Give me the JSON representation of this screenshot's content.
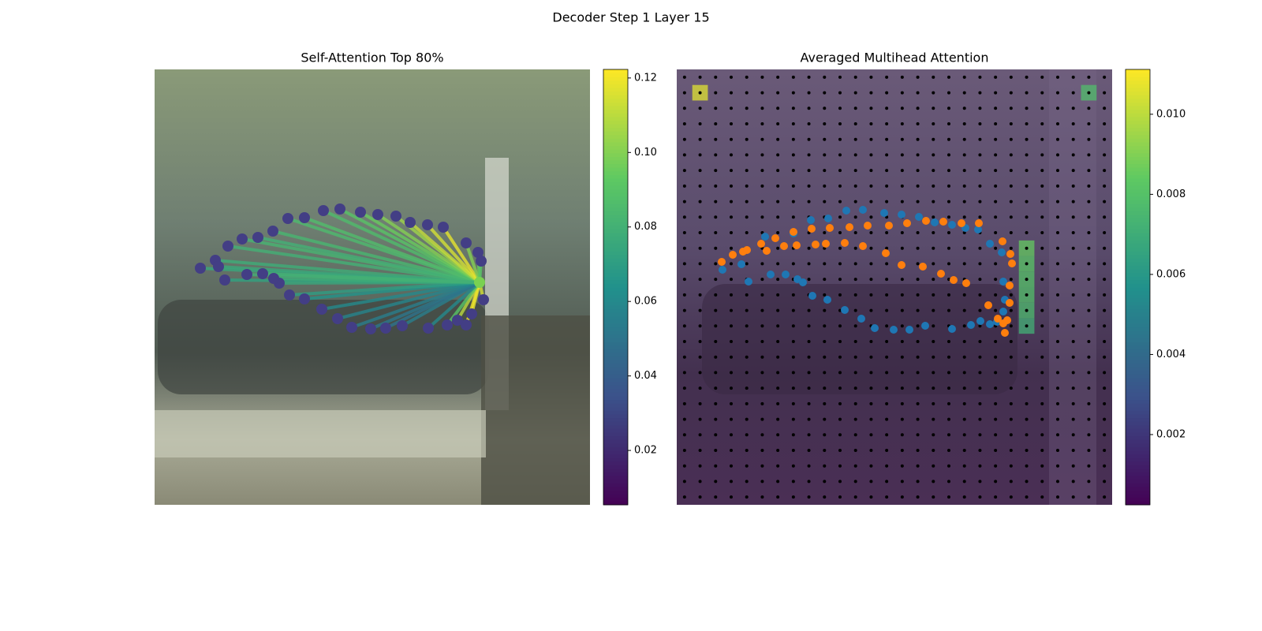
{
  "title": "Decoder Step 1 Layer 15",
  "chart_data": [
    {
      "type": "attention-lines",
      "title": "Self-Attention Top 80%",
      "xlim": [
        0,
        552
      ],
      "ylim": [
        552,
        0
      ],
      "query_point": {
        "x": 412,
        "y": 270,
        "color": "#7ad151"
      },
      "marker_color": "#433e85",
      "x": [
        58,
        77,
        81,
        89,
        93,
        111,
        131,
        150,
        169,
        190,
        214,
        235,
        261,
        283,
        306,
        324,
        346,
        366,
        395,
        410,
        414,
        417,
        402,
        395,
        384,
        371,
        347,
        314,
        293,
        274,
        250,
        232,
        212,
        190,
        171,
        158,
        151,
        137,
        117
      ],
      "y": [
        252,
        242,
        250,
        267,
        224,
        215,
        213,
        205,
        189,
        188,
        179,
        177,
        181,
        184,
        186,
        194,
        197,
        200,
        220,
        232,
        243,
        292,
        310,
        324,
        318,
        324,
        328,
        325,
        328,
        329,
        327,
        316,
        304,
        291,
        286,
        271,
        265,
        259,
        260
      ],
      "values": [
        0.075,
        0.078,
        0.076,
        0.072,
        0.08,
        0.082,
        0.08,
        0.083,
        0.085,
        0.087,
        0.086,
        0.09,
        0.095,
        0.1,
        0.105,
        0.112,
        0.115,
        0.118,
        0.1,
        0.095,
        0.09,
        0.115,
        0.118,
        0.12,
        0.11,
        0.09,
        0.06,
        0.055,
        0.05,
        0.052,
        0.055,
        0.058,
        0.06,
        0.065,
        0.07,
        0.075,
        0.078,
        0.08,
        0.08
      ],
      "clim": [
        0.0054,
        0.1223
      ],
      "cticks": [
        0.02,
        0.04,
        0.06,
        0.08,
        {
          "value": 0.1,
          "label": "0.10"
        },
        0.12
      ]
    },
    {
      "type": "heatmap-points",
      "title": "Averaged Multihead Attention",
      "xlim": [
        0,
        552
      ],
      "ylim": [
        552,
        0
      ],
      "grid_size": 28,
      "cells": [
        {
          "col": 1,
          "row": 1,
          "value": 0.0106
        },
        {
          "col": 26,
          "row": 1,
          "value": 0.0078
        },
        {
          "col": 22,
          "row": 11,
          "value": 0.0085
        },
        {
          "col": 22,
          "row": 12,
          "value": 0.0082
        },
        {
          "col": 22,
          "row": 13,
          "value": 0.008
        },
        {
          "col": 22,
          "row": 14,
          "value": 0.0079
        },
        {
          "col": 22,
          "row": 15,
          "value": 0.0077
        },
        {
          "col": 22,
          "row": 16,
          "value": 0.0072
        }
      ],
      "series": [
        {
          "color": "#1f77b4",
          "x": [
            58,
            91,
            119,
            138,
            153,
            160,
            172,
            191,
            213,
            234,
            251,
            275,
            295,
            315,
            349,
            373,
            385,
            397,
            406,
            414,
            416,
            414,
            412,
            397,
            382,
            327,
            307,
            285,
            263,
            236,
            215,
            192,
            170,
            148,
            112,
            82,
            366,
            349
          ],
          "y": [
            254,
            269,
            260,
            260,
            266,
            270,
            287,
            292,
            305,
            316,
            328,
            330,
            330,
            325,
            329,
            324,
            319,
            323,
            320,
            307,
            292,
            269,
            232,
            221,
            203,
            194,
            187,
            184,
            182,
            178,
            179,
            189,
            191,
            208,
            212,
            247,
            201,
            197
          ]
        },
        {
          "color": "#ff7f0e",
          "x": [
            57,
            71,
            84,
            89,
            114,
            107,
            125,
            136,
            148,
            152,
            171,
            176,
            189,
            194,
            213,
            219,
            236,
            242,
            265,
            269,
            285,
            292,
            312,
            316,
            335,
            338,
            351,
            361,
            367,
            383,
            395,
            407,
            413,
            414,
            416,
            419,
            422,
            422,
            423,
            425
          ],
          "y": [
            244,
            235,
            231,
            229,
            230,
            221,
            214,
            224,
            206,
            223,
            202,
            222,
            221,
            201,
            220,
            200,
            224,
            198,
            233,
            198,
            248,
            195,
            250,
            192,
            259,
            193,
            267,
            195,
            271,
            195,
            299,
            316,
            218,
            322,
            334,
            318,
            296,
            274,
            234,
            246
          ]
        }
      ],
      "clim": [
        0.000246,
        0.01112
      ],
      "cticks": [
        0.002,
        0.004,
        0.006,
        0.008,
        {
          "value": 0.01,
          "label": "0.010"
        }
      ]
    }
  ]
}
